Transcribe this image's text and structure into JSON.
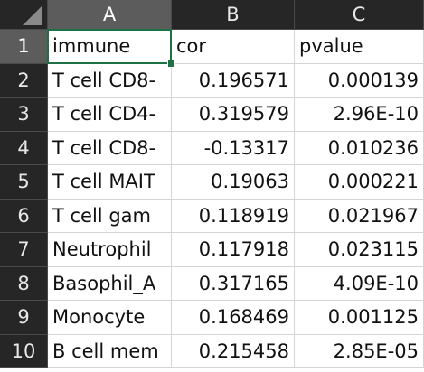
{
  "sheet": {
    "column_headers": [
      "A",
      "B",
      "C"
    ],
    "row_headers": [
      "1",
      "2",
      "3",
      "4",
      "5",
      "6",
      "7",
      "8",
      "9",
      "10"
    ],
    "rows": [
      [
        "immune",
        "cor",
        "pvalue"
      ],
      [
        "T cell CD8-",
        "0.196571",
        "0.000139"
      ],
      [
        "T cell CD4-",
        "0.319579",
        "2.96E-10"
      ],
      [
        "T cell CD8-",
        "-0.13317",
        "0.010236"
      ],
      [
        "T cell MAIT",
        "0.19063",
        "0.000221"
      ],
      [
        "T cell gam",
        "0.118919",
        "0.021967"
      ],
      [
        "Neutrophil",
        "0.117918",
        "0.023115"
      ],
      [
        "Basophil_A",
        "0.317165",
        "4.09E-10"
      ],
      [
        "Monocyte",
        "0.168469",
        "0.001125"
      ],
      [
        "B cell mem",
        "0.215458",
        "2.85E-05"
      ]
    ]
  }
}
